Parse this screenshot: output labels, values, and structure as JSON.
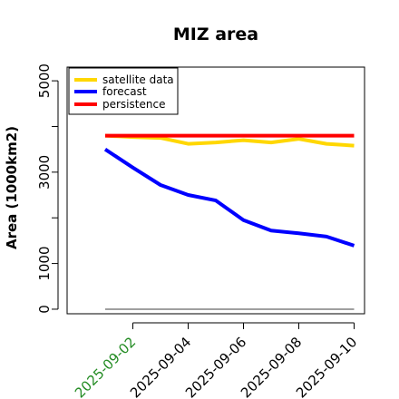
{
  "chart_data": {
    "type": "line",
    "title": "MIZ area",
    "xlabel": "",
    "ylabel": "Area (1000km2)",
    "x": [
      "2025-09-01",
      "2025-09-02",
      "2025-09-03",
      "2025-09-04",
      "2025-09-05",
      "2025-09-06",
      "2025-09-07",
      "2025-09-08",
      "2025-09-09",
      "2025-09-10"
    ],
    "xtick_labels": [
      "2025-09-02",
      "2025-09-04",
      "2025-09-06",
      "2025-09-08",
      "2025-09-10"
    ],
    "xtick_colors": [
      "#228b22",
      "#000000",
      "#000000",
      "#000000",
      "#000000"
    ],
    "yticks": [
      0,
      1000,
      3000,
      5000
    ],
    "ylim": [
      -100,
      5300
    ],
    "legend_position": "top-left",
    "series": [
      {
        "name": "satellite data",
        "color": "#ffd700",
        "values": [
          3800,
          3770,
          3750,
          3620,
          3650,
          3700,
          3650,
          3730,
          3620,
          3580
        ]
      },
      {
        "name": "forecast",
        "color": "#0000ff",
        "values": [
          3500,
          3100,
          2720,
          2500,
          2380,
          1950,
          1720,
          1660,
          1590,
          1390
        ]
      },
      {
        "name": "persistence",
        "color": "#ff0000",
        "values": [
          3800,
          3800,
          3800,
          3800,
          3800,
          3800,
          3800,
          3800,
          3800,
          3800
        ]
      }
    ],
    "reference_line": {
      "value": 0,
      "color": "#808080"
    }
  }
}
